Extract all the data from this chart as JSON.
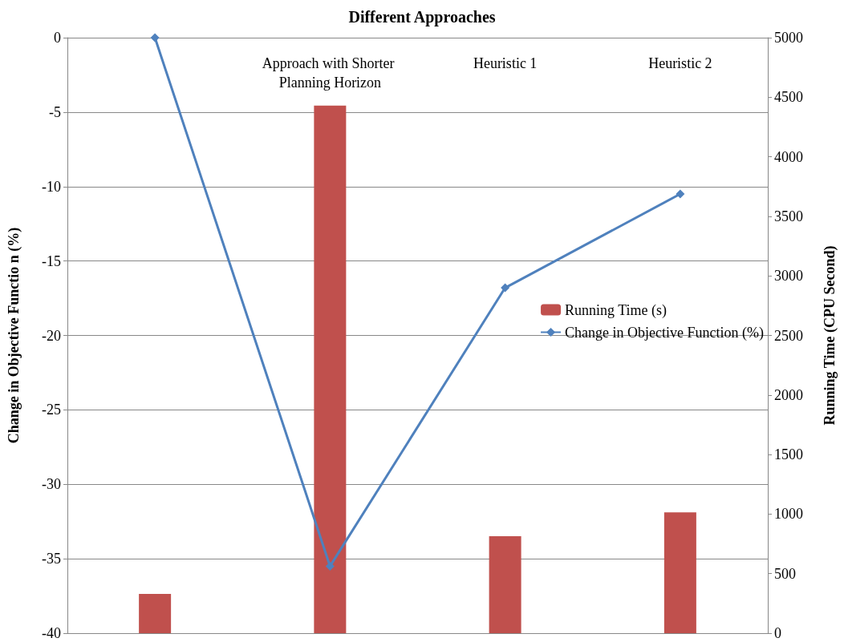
{
  "chart_data": {
    "type": "bar",
    "title": "Different Approaches",
    "ylabel": "Change in Objective Functio n (%)",
    "y2label": "Running Time (CPU Second)",
    "categories": [
      null,
      "Approach with Shorter Planning Horizon",
      "Heuristic 1",
      "Heuristic 2"
    ],
    "series": [
      {
        "name": "Running Time (s)",
        "axis": "y2",
        "color": "#c0504d",
        "values": [
          330,
          4430,
          815,
          1015
        ]
      },
      {
        "name": "Change in Objective Function (%)",
        "type": "line",
        "color": "#4f81bd",
        "values": [
          0,
          -35.5,
          -16.8,
          -10.5
        ],
        "marker": "diamond"
      }
    ],
    "ylim": [
      -40,
      0
    ],
    "yticks": [
      -40,
      -35,
      -30,
      -25,
      -20,
      -15,
      -10,
      -5,
      0
    ],
    "y2lim": [
      0,
      5000
    ],
    "y2ticks": [
      0,
      500,
      1000,
      1500,
      2000,
      2500,
      3000,
      3500,
      4000,
      4500,
      5000
    ],
    "grid": "y",
    "legend": "right"
  }
}
